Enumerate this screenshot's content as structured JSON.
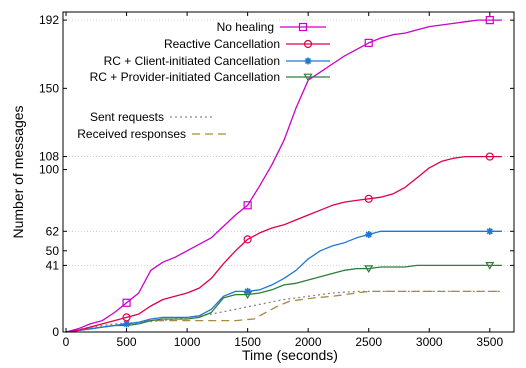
{
  "chart_data": {
    "type": "line",
    "title": "",
    "xlabel": "Time (seconds)",
    "ylabel": "Number of messages",
    "xlim": [
      -25,
      3700
    ],
    "ylim": [
      0,
      197
    ],
    "xticks": [
      0,
      500,
      1000,
      1500,
      2000,
      2500,
      3000,
      3500
    ],
    "yticks": [
      0,
      41,
      50,
      62,
      100,
      108,
      150,
      192
    ],
    "grid_horizontal": [
      41,
      62,
      108,
      192
    ],
    "series": [
      {
        "name": "No healing",
        "color": "#cc00cc",
        "dash": "",
        "marker": "square",
        "marker_x": [
          500,
          1500,
          2500,
          3500
        ],
        "x": [
          0,
          100,
          200,
          300,
          400,
          500,
          600,
          700,
          800,
          900,
          1000,
          1100,
          1200,
          1300,
          1400,
          1500,
          1600,
          1700,
          1800,
          1900,
          2000,
          2100,
          2200,
          2300,
          2400,
          2500,
          2600,
          2700,
          2800,
          2900,
          3000,
          3100,
          3200,
          3300,
          3400,
          3500,
          3600
        ],
        "y": [
          0,
          2,
          5,
          7,
          12,
          18,
          24,
          38,
          43,
          46,
          50,
          54,
          58,
          65,
          72,
          78,
          90,
          103,
          118,
          138,
          155,
          160,
          165,
          170,
          174,
          178,
          181,
          183,
          184,
          186,
          188,
          189,
          190,
          191,
          192,
          192,
          192
        ]
      },
      {
        "name": "Reactive Cancellation",
        "color": "#e0004a",
        "dash": "",
        "marker": "circle",
        "marker_x": [
          500,
          1500,
          2500,
          3500
        ],
        "x": [
          0,
          100,
          200,
          300,
          400,
          500,
          600,
          700,
          800,
          900,
          1000,
          1100,
          1200,
          1300,
          1400,
          1500,
          1600,
          1700,
          1800,
          1900,
          2000,
          2100,
          2200,
          2300,
          2400,
          2500,
          2600,
          2700,
          2800,
          2900,
          3000,
          3100,
          3200,
          3300,
          3400,
          3500,
          3600
        ],
        "y": [
          0,
          1,
          3,
          5,
          7,
          9,
          11,
          16,
          20,
          22,
          24,
          27,
          33,
          42,
          50,
          57,
          61,
          64,
          66,
          69,
          72,
          75,
          78,
          80,
          81,
          82,
          83,
          85,
          89,
          95,
          101,
          105,
          107,
          108,
          108,
          108,
          108
        ]
      },
      {
        "name": "RC + Client-initiated Cancellation",
        "color": "#1f77d4",
        "dash": "",
        "marker": "star",
        "marker_x": [
          500,
          1500,
          2500,
          3500
        ],
        "x": [
          0,
          100,
          200,
          300,
          400,
          500,
          600,
          700,
          800,
          900,
          1000,
          1100,
          1200,
          1300,
          1400,
          1500,
          1600,
          1700,
          1800,
          1900,
          2000,
          2100,
          2200,
          2300,
          2400,
          2500,
          2600,
          2700,
          2800,
          2900,
          3000,
          3100,
          3200,
          3300,
          3400,
          3500,
          3600
        ],
        "y": [
          0,
          1,
          2,
          3,
          4,
          5,
          6,
          8,
          9,
          9,
          9,
          10,
          14,
          22,
          25,
          25,
          26,
          29,
          33,
          38,
          45,
          50,
          53,
          55,
          58,
          60,
          62,
          62,
          62,
          62,
          62,
          62,
          62,
          62,
          62,
          62,
          62
        ]
      },
      {
        "name": "RC + Provider-initiated Cancellation",
        "color": "#2e7d3a",
        "dash": "",
        "marker": "triangle-down",
        "marker_x": [
          1500,
          2500,
          3500
        ],
        "x": [
          0,
          100,
          200,
          300,
          400,
          500,
          600,
          700,
          800,
          900,
          1000,
          1100,
          1200,
          1300,
          1400,
          1500,
          1600,
          1700,
          1800,
          1900,
          2000,
          2100,
          2200,
          2300,
          2400,
          2500,
          2600,
          2700,
          2800,
          2900,
          3000,
          3100,
          3200,
          3300,
          3400,
          3500,
          3600
        ],
        "y": [
          0,
          1,
          2,
          3,
          4,
          4,
          5,
          7,
          8,
          8,
          8,
          9,
          12,
          21,
          23,
          23,
          24,
          26,
          29,
          30,
          32,
          34,
          36,
          38,
          39,
          39,
          40,
          40,
          40,
          41,
          41,
          41,
          41,
          41,
          41,
          41,
          41
        ]
      },
      {
        "name": "Sent requests",
        "color": "#888888",
        "dash": "2,3",
        "marker": "",
        "marker_x": [],
        "x": [
          0,
          200,
          400,
          600,
          800,
          1000,
          1200,
          1400,
          1600,
          1800,
          2000,
          2200,
          2400,
          2600,
          2800,
          3000,
          3200,
          3400,
          3600
        ],
        "y": [
          0,
          3,
          5,
          6,
          7,
          9,
          11,
          14,
          17,
          20,
          22,
          24,
          25,
          25,
          25,
          25,
          25,
          25,
          25
        ]
      },
      {
        "name": "Received responses",
        "color": "#a88a3c",
        "dash": "8,5",
        "marker": "",
        "marker_x": [],
        "x": [
          0,
          100,
          200,
          300,
          400,
          500,
          600,
          700,
          800,
          1000,
          1200,
          1400,
          1550,
          1650,
          1750,
          1850,
          1950,
          2050,
          2200,
          2400,
          2500,
          2600,
          2800,
          3000,
          3200,
          3400,
          3600
        ],
        "y": [
          0,
          1,
          2,
          3,
          4,
          5,
          6,
          7,
          7,
          7,
          7,
          7,
          8,
          12,
          16,
          19,
          20,
          21,
          22,
          24,
          25,
          25,
          25,
          25,
          25,
          25,
          25
        ]
      }
    ]
  }
}
